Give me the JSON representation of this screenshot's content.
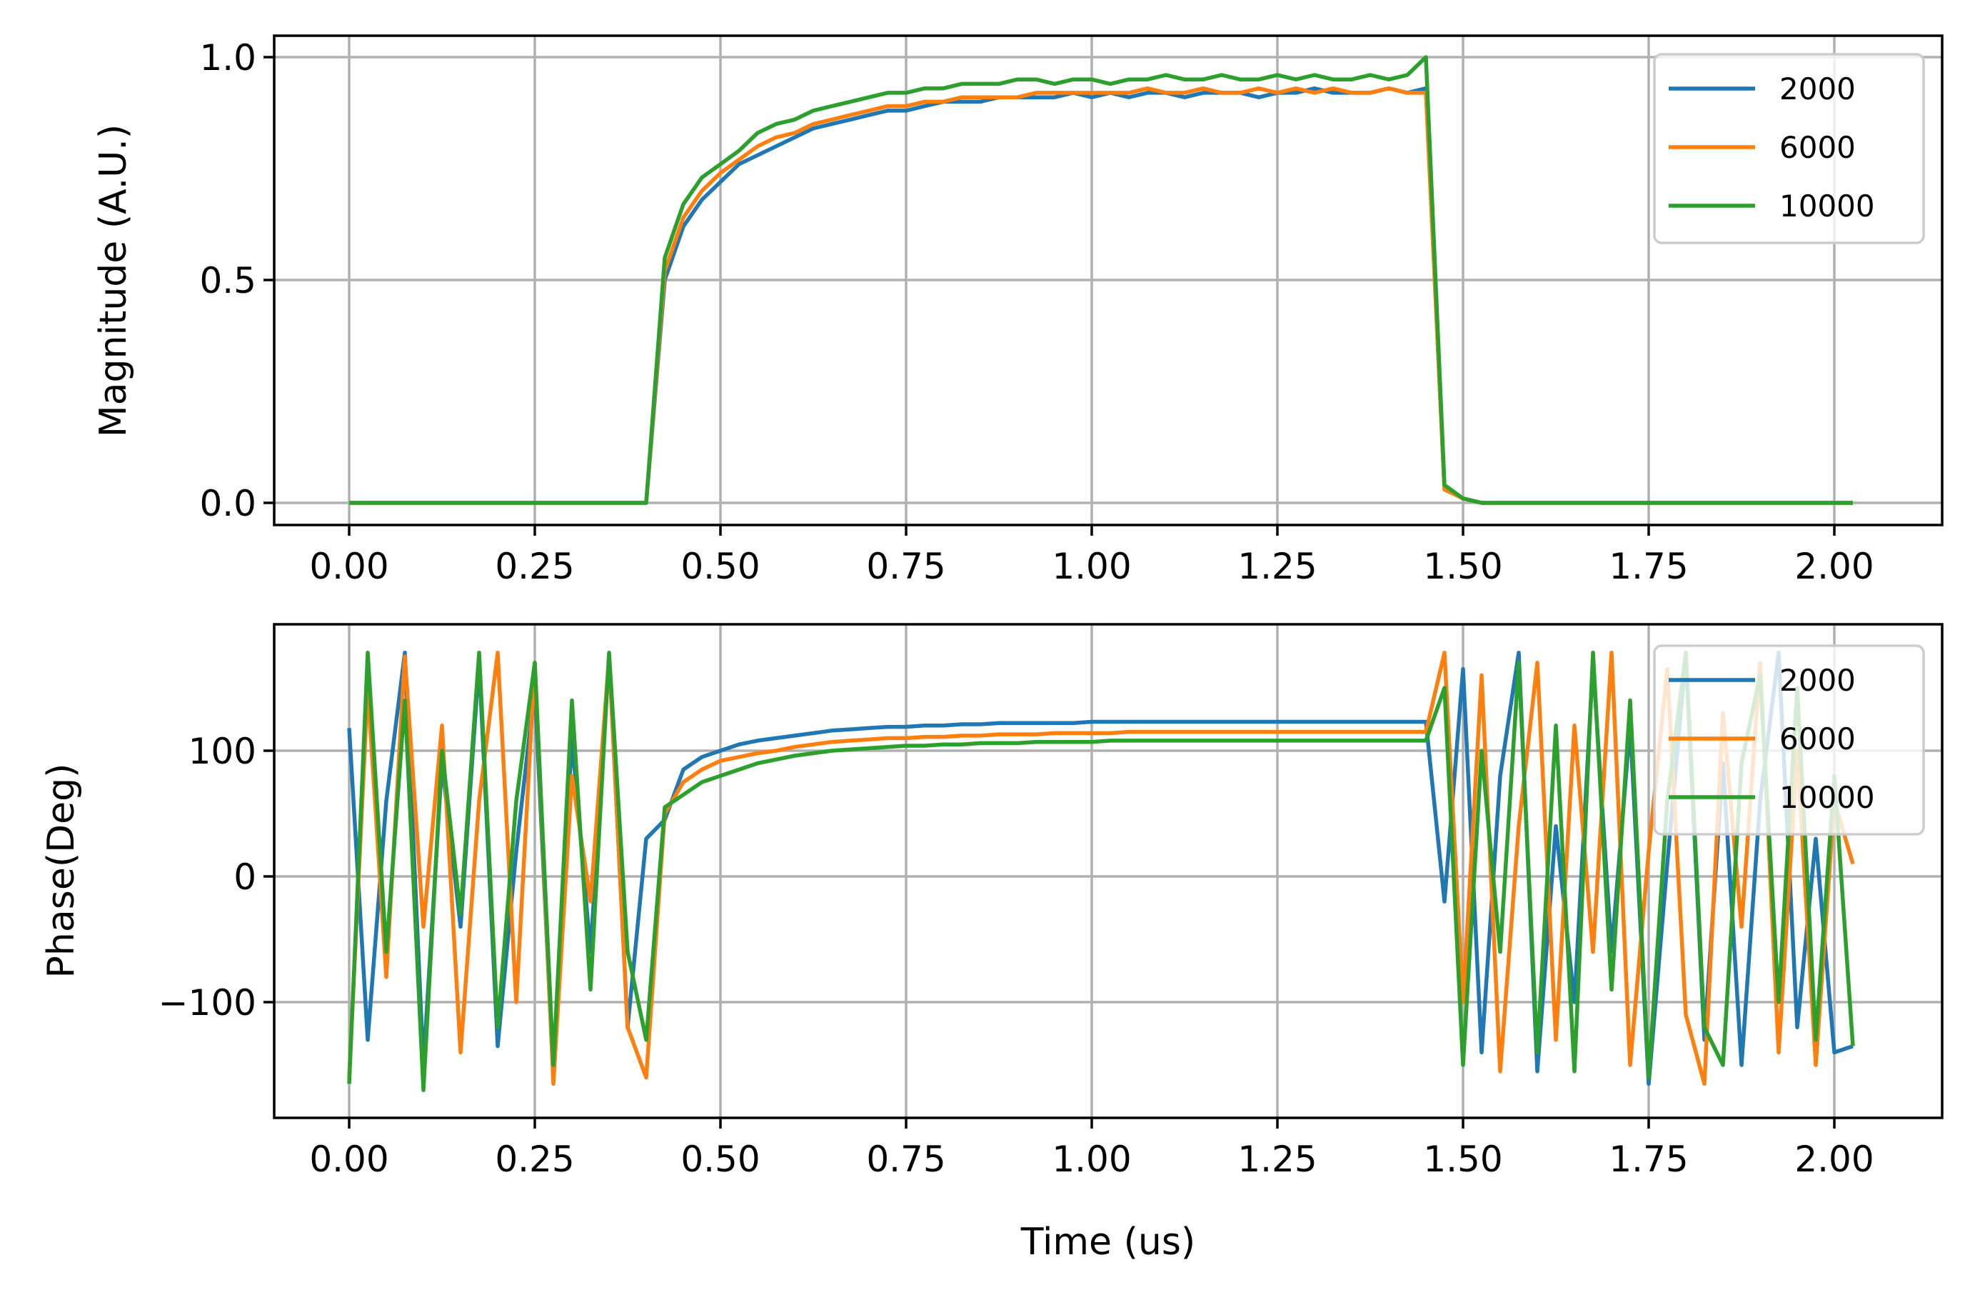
{
  "chart_data": [
    {
      "type": "line",
      "title": "",
      "xlabel": "",
      "ylabel": "Magnitude (A.U.)",
      "xlim": [
        -0.1,
        2.13
      ],
      "ylim": [
        -0.045,
        1.045
      ],
      "xticks": [
        "0.00",
        "0.25",
        "0.50",
        "0.75",
        "1.00",
        "1.25",
        "1.50",
        "1.75",
        "2.00"
      ],
      "yticks": [
        "0.0",
        "0.5",
        "1.0"
      ],
      "ytick_values": [
        0,
        0.5,
        1.0
      ],
      "grid": true,
      "legend_position": "top-right",
      "x_start": 0,
      "x_step": 0.025,
      "series": [
        {
          "name": "2000",
          "color": "#1f77b4",
          "values": [
            0,
            0,
            0,
            0,
            0,
            0,
            0,
            0,
            0,
            0,
            0,
            0,
            0,
            0,
            0,
            0,
            0,
            0.5,
            0.62,
            0.68,
            0.72,
            0.76,
            0.78,
            0.8,
            0.82,
            0.84,
            0.85,
            0.86,
            0.87,
            0.88,
            0.88,
            0.89,
            0.9,
            0.9,
            0.9,
            0.91,
            0.91,
            0.91,
            0.91,
            0.92,
            0.91,
            0.92,
            0.91,
            0.92,
            0.92,
            0.91,
            0.92,
            0.92,
            0.92,
            0.91,
            0.92,
            0.92,
            0.93,
            0.92,
            0.92,
            0.92,
            0.93,
            0.92,
            0.93,
            0.03,
            0.01,
            0,
            0,
            0,
            0,
            0,
            0,
            0,
            0,
            0,
            0,
            0,
            0,
            0,
            0,
            0,
            0,
            0,
            0,
            0,
            0,
            0
          ]
        },
        {
          "name": "6000",
          "color": "#ff7f0e",
          "values": [
            0,
            0,
            0,
            0,
            0,
            0,
            0,
            0,
            0,
            0,
            0,
            0,
            0,
            0,
            0,
            0,
            0,
            0.52,
            0.64,
            0.7,
            0.74,
            0.77,
            0.8,
            0.82,
            0.83,
            0.85,
            0.86,
            0.87,
            0.88,
            0.89,
            0.89,
            0.9,
            0.9,
            0.91,
            0.91,
            0.91,
            0.91,
            0.92,
            0.92,
            0.92,
            0.92,
            0.92,
            0.92,
            0.93,
            0.92,
            0.92,
            0.93,
            0.92,
            0.92,
            0.93,
            0.92,
            0.93,
            0.92,
            0.93,
            0.92,
            0.92,
            0.93,
            0.92,
            0.92,
            0.03,
            0.01,
            0,
            0,
            0,
            0,
            0,
            0,
            0,
            0,
            0,
            0,
            0,
            0,
            0,
            0,
            0,
            0,
            0,
            0,
            0,
            0,
            0
          ]
        },
        {
          "name": "10000",
          "color": "#2ca02c",
          "values": [
            0,
            0,
            0,
            0,
            0,
            0,
            0,
            0,
            0,
            0,
            0,
            0,
            0,
            0,
            0,
            0,
            0,
            0.55,
            0.67,
            0.73,
            0.76,
            0.79,
            0.83,
            0.85,
            0.86,
            0.88,
            0.89,
            0.9,
            0.91,
            0.92,
            0.92,
            0.93,
            0.93,
            0.94,
            0.94,
            0.94,
            0.95,
            0.95,
            0.94,
            0.95,
            0.95,
            0.94,
            0.95,
            0.95,
            0.96,
            0.95,
            0.95,
            0.96,
            0.95,
            0.95,
            0.96,
            0.95,
            0.96,
            0.95,
            0.95,
            0.96,
            0.95,
            0.96,
            1.0,
            0.04,
            0.01,
            0,
            0,
            0,
            0,
            0,
            0,
            0,
            0,
            0,
            0,
            0,
            0,
            0,
            0,
            0,
            0,
            0,
            0,
            0,
            0,
            0
          ]
        }
      ]
    },
    {
      "type": "line",
      "title": "",
      "xlabel": "Time (us)",
      "ylabel": "Phase(Deg)",
      "xlim": [
        -0.1,
        2.13
      ],
      "ylim": [
        -190,
        198
      ],
      "xticks": [
        "0.00",
        "0.25",
        "0.50",
        "0.75",
        "1.00",
        "1.25",
        "1.50",
        "1.75",
        "2.00"
      ],
      "yticks": [
        "−100",
        "0",
        "100"
      ],
      "ytick_values": [
        -100,
        0,
        100
      ],
      "grid": true,
      "legend_position": "top-right",
      "x_start": 0,
      "x_step": 0.025,
      "series": [
        {
          "name": "2000",
          "color": "#1f77b4",
          "values": [
            118,
            -130,
            60,
            178,
            -150,
            90,
            -40,
            170,
            -135,
            20,
            150,
            -160,
            110,
            -60,
            175,
            -120,
            30,
            45,
            85,
            95,
            100,
            105,
            108,
            110,
            112,
            114,
            116,
            117,
            118,
            119,
            119,
            120,
            120,
            121,
            121,
            122,
            122,
            122,
            122,
            122,
            123,
            123,
            123,
            123,
            123,
            123,
            123,
            123,
            123,
            123,
            123,
            123,
            123,
            123,
            123,
            123,
            123,
            123,
            123,
            -20,
            165,
            -140,
            80,
            178,
            -155,
            40,
            -100,
            170,
            -60,
            120,
            -165,
            10,
            175,
            -130,
            90,
            -150,
            60,
            178,
            -120,
            30,
            -140,
            -135
          ]
        },
        {
          "name": "6000",
          "color": "#ff7f0e",
          "values": [
            -160,
            150,
            -80,
            175,
            -40,
            120,
            -140,
            60,
            178,
            -100,
            170,
            -165,
            80,
            -20,
            175,
            -120,
            -160,
            50,
            75,
            85,
            92,
            95,
            98,
            100,
            103,
            105,
            107,
            108,
            109,
            110,
            110,
            111,
            111,
            112,
            112,
            113,
            113,
            113,
            114,
            114,
            114,
            114,
            115,
            115,
            115,
            115,
            115,
            115,
            115,
            115,
            115,
            115,
            115,
            115,
            115,
            115,
            115,
            115,
            115,
            178,
            -100,
            160,
            -155,
            40,
            170,
            -130,
            120,
            -60,
            178,
            -150,
            20,
            165,
            -110,
            -165,
            130,
            -40,
            170,
            -140,
            100,
            -150,
            60,
            10
          ]
        },
        {
          "name": "10000",
          "color": "#2ca02c",
          "values": [
            -165,
            178,
            -60,
            140,
            -170,
            100,
            -30,
            178,
            -120,
            60,
            170,
            -150,
            140,
            -90,
            178,
            -60,
            -130,
            55,
            65,
            75,
            80,
            85,
            90,
            93,
            96,
            98,
            100,
            101,
            102,
            103,
            104,
            104,
            105,
            105,
            106,
            106,
            106,
            107,
            107,
            107,
            107,
            108,
            108,
            108,
            108,
            108,
            108,
            108,
            108,
            108,
            108,
            108,
            108,
            108,
            108,
            108,
            108,
            108,
            108,
            150,
            -150,
            100,
            -60,
            170,
            -140,
            120,
            -155,
            178,
            -90,
            140,
            -160,
            60,
            178,
            -120,
            -150,
            90,
            160,
            -100,
            150,
            -130,
            80,
            -135
          ]
        }
      ]
    }
  ]
}
